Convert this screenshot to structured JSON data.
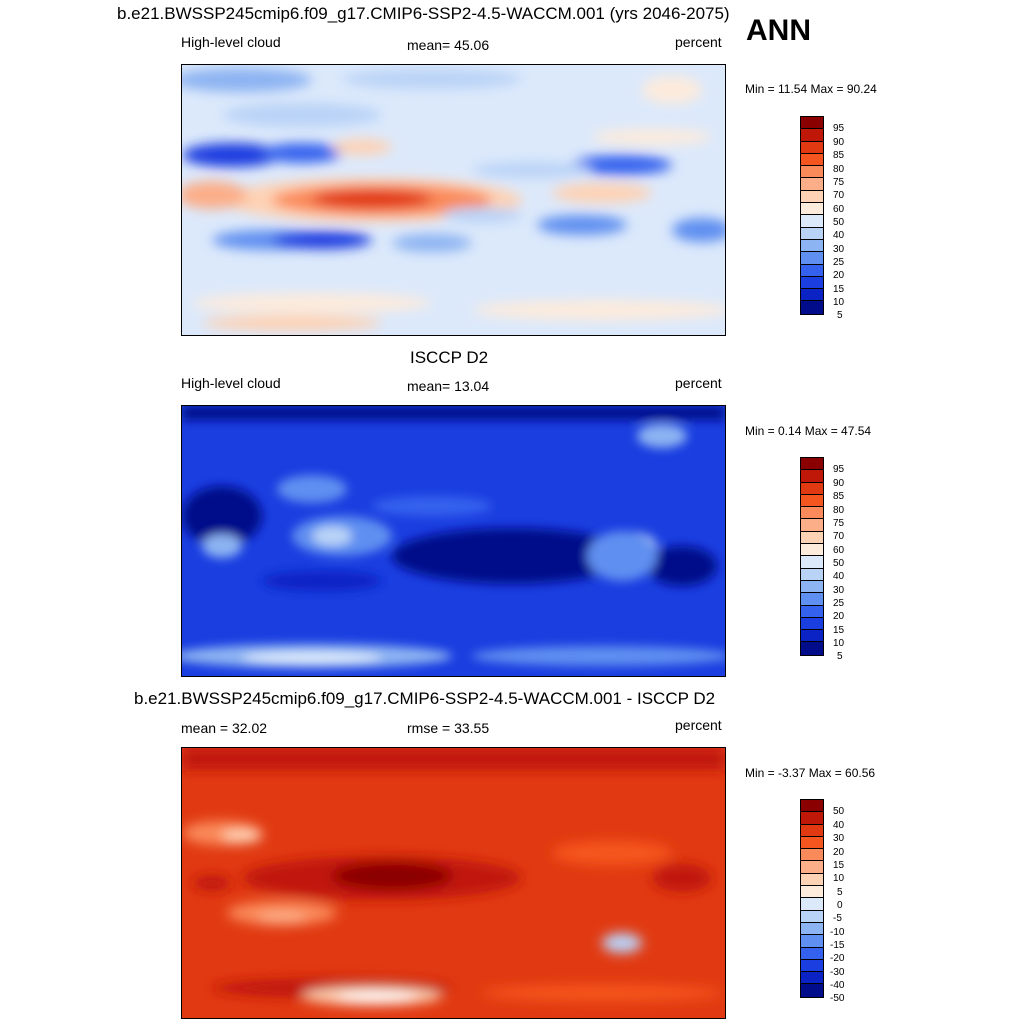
{
  "annual_label": "ANN",
  "panels": [
    {
      "title": "b.e21.BWSSP245cmip6.f09_g17.CMIP6-SSP2-4.5-WACCM.001 (yrs 2046-2075)",
      "left_label": "High-level cloud",
      "center_label": "mean=  45.06",
      "right_label": "percent",
      "minmax": "Min =  11.54 Max =  90.24",
      "colorbar_labels": [
        "95",
        "90",
        "85",
        "80",
        "75",
        "70",
        "60",
        "50",
        "40",
        "30",
        "25",
        "20",
        "15",
        "10",
        "5"
      ],
      "colorbar_colors": [
        "#8a0000",
        "#c01808",
        "#e13a12",
        "#f5561f",
        "#fa8a5a",
        "#fcae88",
        "#fed2b4",
        "#fdebdc",
        "#dce9fb",
        "#b9d3f7",
        "#8cb3f2",
        "#5f8ff0",
        "#3462ee",
        "#1a3ee0",
        "#0b23c4",
        "#000c8a"
      ]
    },
    {
      "title": "ISCCP D2",
      "left_label": "High-level cloud",
      "center_label": "mean=  13.04",
      "right_label": "percent",
      "minmax": "Min =   0.14 Max =  47.54",
      "colorbar_labels": [
        "95",
        "90",
        "85",
        "80",
        "75",
        "70",
        "60",
        "50",
        "40",
        "30",
        "25",
        "20",
        "15",
        "10",
        "5"
      ],
      "colorbar_colors": [
        "#8a0000",
        "#c01808",
        "#e13a12",
        "#f5561f",
        "#fa8a5a",
        "#fcae88",
        "#fed2b4",
        "#fdebdc",
        "#dce9fb",
        "#b9d3f7",
        "#8cb3f2",
        "#5f8ff0",
        "#3462ee",
        "#1a3ee0",
        "#0b23c4",
        "#000c8a"
      ]
    },
    {
      "title": "b.e21.BWSSP245cmip6.f09_g17.CMIP6-SSP2-4.5-WACCM.001 - ISCCP D2",
      "left_label": "mean =  32.02",
      "center_label": "rmse =  33.55",
      "right_label": "percent",
      "minmax": "Min =  -3.37 Max =  60.56",
      "colorbar_labels": [
        "50",
        "40",
        "30",
        "20",
        "15",
        "10",
        "5",
        "0",
        "-5",
        "-10",
        "-15",
        "-20",
        "-30",
        "-40",
        "-50"
      ],
      "colorbar_colors": [
        "#8a0000",
        "#c01808",
        "#e13a12",
        "#f5561f",
        "#fa8a5a",
        "#fcae88",
        "#fed2b4",
        "#fdebdc",
        "#dce9fb",
        "#b9d3f7",
        "#8cb3f2",
        "#5f8ff0",
        "#3462ee",
        "#1a3ee0",
        "#0b23c4",
        "#000c8a"
      ]
    }
  ]
}
